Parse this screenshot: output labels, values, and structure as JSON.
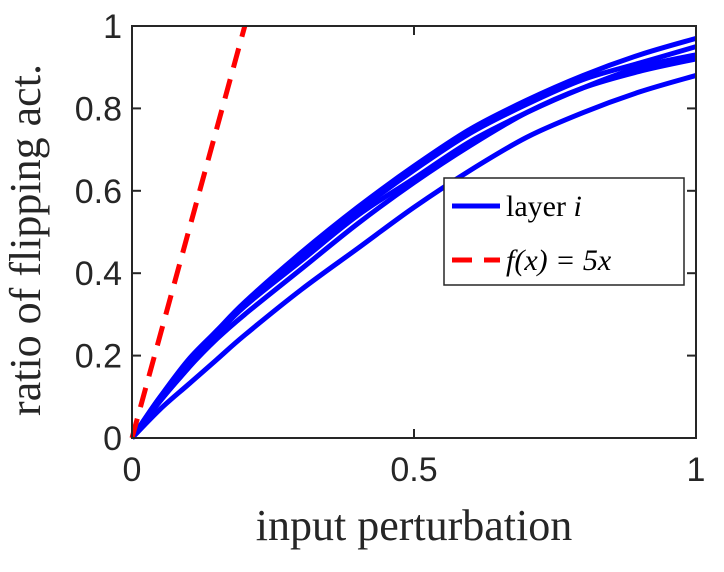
{
  "chart_data": {
    "type": "line",
    "title": "",
    "xlabel": "input perturbation",
    "ylabel": "ratio of flipping act.",
    "xlim": [
      0,
      1
    ],
    "ylim": [
      0,
      1
    ],
    "x_ticks": [
      "0",
      "0.5",
      "1"
    ],
    "y_ticks": [
      "0",
      "0.2",
      "0.4",
      "0.6",
      "0.8",
      "1"
    ],
    "grid": false,
    "legend_position": "right",
    "legend": [
      {
        "label": "layer ",
        "label_italic": "i",
        "color": "#0000ff",
        "style": "solid"
      },
      {
        "label": "f(x) = 5x",
        "color": "#ff0000",
        "style": "dashed"
      }
    ],
    "x": [
      0,
      0.05,
      0.1,
      0.15,
      0.2,
      0.3,
      0.4,
      0.5,
      0.6,
      0.7,
      0.8,
      0.9,
      1.0
    ],
    "series": [
      {
        "group": "layer",
        "color": "#0000ff",
        "values": [
          0,
          0.1,
          0.19,
          0.26,
          0.33,
          0.45,
          0.56,
          0.66,
          0.75,
          0.82,
          0.88,
          0.93,
          0.97
        ]
      },
      {
        "group": "layer",
        "color": "#0000ff",
        "values": [
          0,
          0.1,
          0.18,
          0.26,
          0.32,
          0.44,
          0.55,
          0.65,
          0.74,
          0.81,
          0.87,
          0.91,
          0.95
        ]
      },
      {
        "group": "layer",
        "color": "#0000ff",
        "values": [
          0,
          0.09,
          0.17,
          0.25,
          0.32,
          0.43,
          0.54,
          0.63,
          0.72,
          0.79,
          0.85,
          0.9,
          0.93
        ]
      },
      {
        "group": "layer",
        "color": "#0000ff",
        "values": [
          0,
          0.09,
          0.17,
          0.24,
          0.3,
          0.41,
          0.52,
          0.62,
          0.71,
          0.79,
          0.85,
          0.89,
          0.92
        ]
      },
      {
        "group": "layer",
        "color": "#0000ff",
        "values": [
          0,
          0.07,
          0.13,
          0.19,
          0.25,
          0.36,
          0.46,
          0.56,
          0.65,
          0.73,
          0.79,
          0.84,
          0.88
        ]
      },
      {
        "group": "reference",
        "color": "#ff0000",
        "dashed": true,
        "values": [
          0,
          0.25,
          0.5,
          0.75,
          1.0,
          null,
          null,
          null,
          null,
          null,
          null,
          null,
          null
        ]
      }
    ]
  }
}
